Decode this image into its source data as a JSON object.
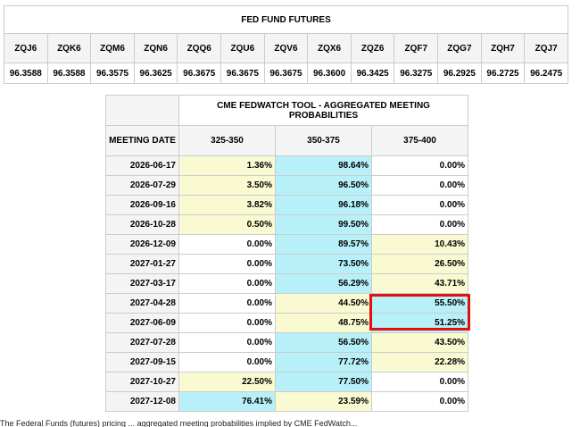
{
  "futures": {
    "title": "FED FUND FUTURES",
    "codes": [
      "ZQJ6",
      "ZQK6",
      "ZQM6",
      "ZQN6",
      "ZQQ6",
      "ZQU6",
      "ZQV6",
      "ZQX6",
      "ZQZ6",
      "ZQF7",
      "ZQG7",
      "ZQH7",
      "ZQJ7"
    ],
    "values": [
      "96.3588",
      "96.3588",
      "96.3575",
      "96.3625",
      "96.3675",
      "96.3675",
      "96.3675",
      "96.3600",
      "96.3425",
      "96.3275",
      "96.2925",
      "96.2725",
      "96.2475"
    ]
  },
  "probabilities": {
    "title": "CME FEDWATCH TOOL - AGGREGATED MEETING PROBABILITIES",
    "headers": [
      "MEETING DATE",
      "325-350",
      "350-375",
      "375-400"
    ],
    "colors": {
      "yellow": "#fafad2",
      "blue": "#b7f0f8",
      "white": "#ffffff",
      "highlight": "#e01010"
    },
    "rows": [
      {
        "date": "2026-06-17",
        "values": [
          "1.36%",
          "98.64%",
          "0.00%"
        ],
        "fills": [
          "yellow",
          "blue",
          "white"
        ]
      },
      {
        "date": "2026-07-29",
        "values": [
          "3.50%",
          "96.50%",
          "0.00%"
        ],
        "fills": [
          "yellow",
          "blue",
          "white"
        ]
      },
      {
        "date": "2026-09-16",
        "values": [
          "3.82%",
          "96.18%",
          "0.00%"
        ],
        "fills": [
          "yellow",
          "blue",
          "white"
        ]
      },
      {
        "date": "2026-10-28",
        "values": [
          "0.50%",
          "99.50%",
          "0.00%"
        ],
        "fills": [
          "yellow",
          "blue",
          "white"
        ]
      },
      {
        "date": "2026-12-09",
        "values": [
          "0.00%",
          "89.57%",
          "10.43%"
        ],
        "fills": [
          "white",
          "blue",
          "yellow"
        ]
      },
      {
        "date": "2027-01-27",
        "values": [
          "0.00%",
          "73.50%",
          "26.50%"
        ],
        "fills": [
          "white",
          "blue",
          "yellow"
        ]
      },
      {
        "date": "2027-03-17",
        "values": [
          "0.00%",
          "56.29%",
          "43.71%"
        ],
        "fills": [
          "white",
          "blue",
          "yellow"
        ]
      },
      {
        "date": "2027-04-28",
        "values": [
          "0.00%",
          "44.50%",
          "55.50%"
        ],
        "fills": [
          "white",
          "yellow",
          "blue"
        ]
      },
      {
        "date": "2027-06-09",
        "values": [
          "0.00%",
          "48.75%",
          "51.25%"
        ],
        "fills": [
          "white",
          "yellow",
          "blue"
        ]
      },
      {
        "date": "2027-07-28",
        "values": [
          "0.00%",
          "56.50%",
          "43.50%"
        ],
        "fills": [
          "white",
          "blue",
          "yellow"
        ]
      },
      {
        "date": "2027-09-15",
        "values": [
          "0.00%",
          "77.72%",
          "22.28%"
        ],
        "fills": [
          "white",
          "blue",
          "yellow"
        ]
      },
      {
        "date": "2027-10-27",
        "values": [
          "22.50%",
          "77.50%",
          "0.00%"
        ],
        "fills": [
          "yellow",
          "blue",
          "white"
        ]
      },
      {
        "date": "2027-12-08",
        "values": [
          "76.41%",
          "23.59%",
          "0.00%"
        ],
        "fills": [
          "blue",
          "yellow",
          "white"
        ]
      }
    ],
    "highlighted_dates": [
      "2027-04-28",
      "2027-06-09"
    ]
  },
  "caption": "The Federal Funds (futures) pricing ... aggregated meeting probabilities implied by CME FedWatch..."
}
